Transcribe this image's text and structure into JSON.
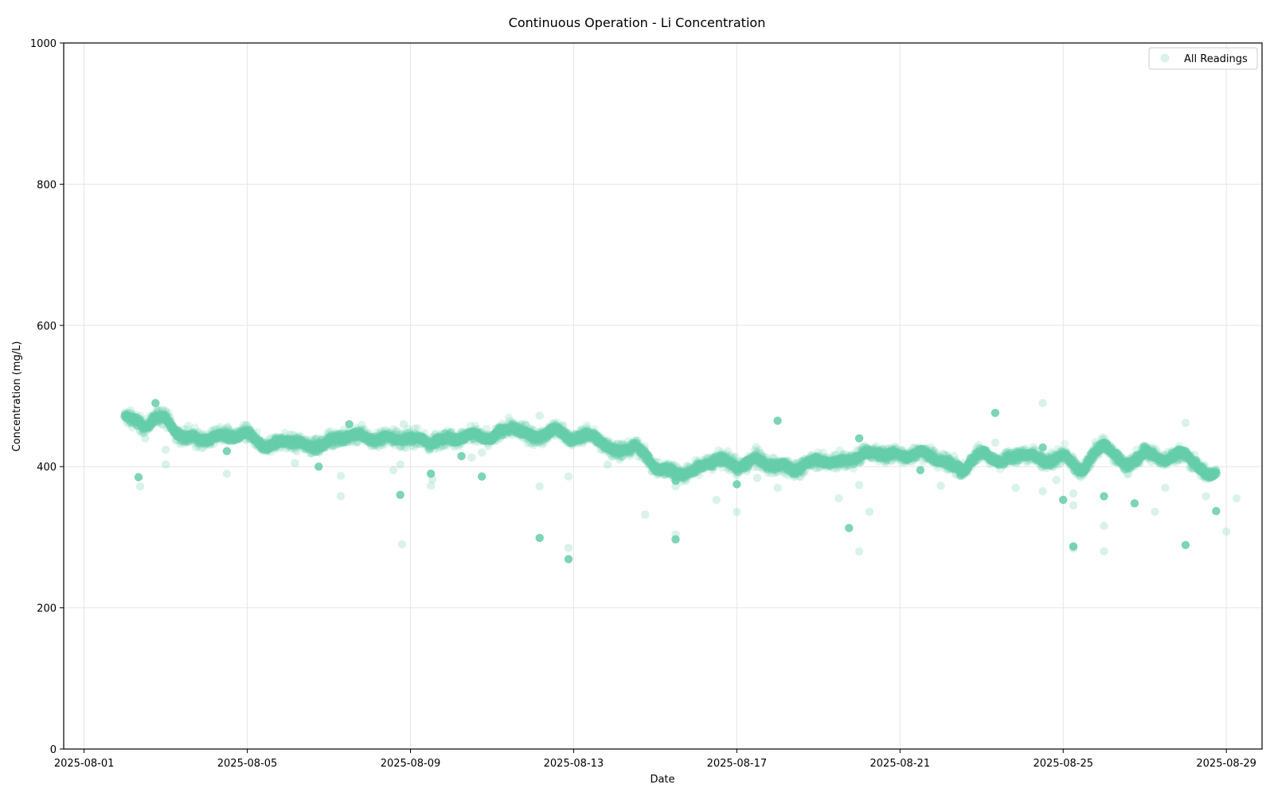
{
  "chart_data": {
    "type": "scatter",
    "title": "Continuous Operation - Li Concentration",
    "xlabel": "Date",
    "ylabel": "Concentration (mg/L)",
    "xlim": [
      "2025-08-00T12:00",
      "2025-08-29T21:00"
    ],
    "ylim": [
      0,
      1000
    ],
    "x_ticks": [
      "2025-08-01",
      "2025-08-05",
      "2025-08-09",
      "2025-08-13",
      "2025-08-17",
      "2025-08-21",
      "2025-08-25",
      "2025-08-29"
    ],
    "y_ticks": [
      0,
      200,
      400,
      600,
      800,
      1000
    ],
    "grid": true,
    "legend_position": "top-right",
    "color": "#66cdaa",
    "series": [
      {
        "name": "All Readings",
        "trend": [
          [
            "2025-08-02 00:00",
            473
          ],
          [
            "2025-08-02 06:00",
            462
          ],
          [
            "2025-08-02 12:00",
            458
          ],
          [
            "2025-08-02 18:00",
            470
          ],
          [
            "2025-08-03 00:00",
            468
          ],
          [
            "2025-08-03 06:00",
            450
          ],
          [
            "2025-08-03 12:00",
            440
          ],
          [
            "2025-08-04 00:00",
            440
          ],
          [
            "2025-08-04 12:00",
            444
          ],
          [
            "2025-08-05 00:00",
            445
          ],
          [
            "2025-08-05 12:00",
            428
          ],
          [
            "2025-08-06 00:00",
            438
          ],
          [
            "2025-08-06 12:00",
            428
          ],
          [
            "2025-08-07 00:00",
            435
          ],
          [
            "2025-08-07 12:00",
            445
          ],
          [
            "2025-08-08 00:00",
            440
          ],
          [
            "2025-08-08 12:00",
            440
          ],
          [
            "2025-08-09 00:00",
            440
          ],
          [
            "2025-08-09 12:00",
            435
          ],
          [
            "2025-08-10 00:00",
            440
          ],
          [
            "2025-08-10 12:00",
            445
          ],
          [
            "2025-08-11 00:00",
            440
          ],
          [
            "2025-08-11 12:00",
            458
          ],
          [
            "2025-08-12 00:00",
            440
          ],
          [
            "2025-08-12 12:00",
            452
          ],
          [
            "2025-08-13 00:00",
            440
          ],
          [
            "2025-08-13 12:00",
            445
          ],
          [
            "2025-08-14 00:00",
            420
          ],
          [
            "2025-08-14 12:00",
            430
          ],
          [
            "2025-08-15 00:00",
            400
          ],
          [
            "2025-08-15 12:00",
            390
          ],
          [
            "2025-08-16 00:00",
            395
          ],
          [
            "2025-08-16 12:00",
            412
          ],
          [
            "2025-08-17 00:00",
            400
          ],
          [
            "2025-08-17 12:00",
            410
          ],
          [
            "2025-08-18 00:00",
            400
          ],
          [
            "2025-08-18 12:00",
            398
          ],
          [
            "2025-08-19 00:00",
            410
          ],
          [
            "2025-08-19 12:00",
            405
          ],
          [
            "2025-08-20 00:00",
            415
          ],
          [
            "2025-08-20 12:00",
            420
          ],
          [
            "2025-08-21 00:00",
            415
          ],
          [
            "2025-08-21 12:00",
            420
          ],
          [
            "2025-08-22 00:00",
            410
          ],
          [
            "2025-08-22 12:00",
            395
          ],
          [
            "2025-08-23 00:00",
            420
          ],
          [
            "2025-08-23 12:00",
            405
          ],
          [
            "2025-08-24 00:00",
            420
          ],
          [
            "2025-08-24 12:00",
            408
          ],
          [
            "2025-08-25 00:00",
            415
          ],
          [
            "2025-08-25 12:00",
            395
          ],
          [
            "2025-08-26 00:00",
            435
          ],
          [
            "2025-08-26 12:00",
            400
          ],
          [
            "2025-08-27 00:00",
            420
          ],
          [
            "2025-08-27 12:00",
            410
          ],
          [
            "2025-08-28 00:00",
            420
          ],
          [
            "2025-08-28 06:00",
            405
          ],
          [
            "2025-08-28 12:00",
            385
          ],
          [
            "2025-08-28 18:00",
            392
          ]
        ],
        "outliers": [
          [
            "2025-08-02 08:00",
            385
          ],
          [
            "2025-08-02 09:00",
            372
          ],
          [
            "2025-08-02 12:00",
            440
          ],
          [
            "2025-08-02 18:00",
            490
          ],
          [
            "2025-08-03 00:00",
            424
          ],
          [
            "2025-08-03 00:00",
            403
          ],
          [
            "2025-08-04 12:00",
            422
          ],
          [
            "2025-08-04 12:00",
            390
          ],
          [
            "2025-08-06 04:00",
            405
          ],
          [
            "2025-08-06 18:00",
            400
          ],
          [
            "2025-08-07 07:00",
            387
          ],
          [
            "2025-08-07 07:00",
            358
          ],
          [
            "2025-08-07 12:00",
            460
          ],
          [
            "2025-08-08 14:00",
            395
          ],
          [
            "2025-08-08 18:00",
            403
          ],
          [
            "2025-08-08 18:00",
            360
          ],
          [
            "2025-08-08 19:00",
            290
          ],
          [
            "2025-08-08 20:00",
            460
          ],
          [
            "2025-08-09 12:00",
            390
          ],
          [
            "2025-08-09 13:00",
            382
          ],
          [
            "2025-08-09 12:00",
            373
          ],
          [
            "2025-08-10 06:00",
            415
          ],
          [
            "2025-08-10 12:00",
            413
          ],
          [
            "2025-08-10 18:00",
            420
          ],
          [
            "2025-08-10 18:00",
            386
          ],
          [
            "2025-08-12 04:00",
            472
          ],
          [
            "2025-08-12 04:00",
            372
          ],
          [
            "2025-08-12 04:00",
            299
          ],
          [
            "2025-08-12 21:00",
            386
          ],
          [
            "2025-08-12 21:00",
            285
          ],
          [
            "2025-08-12 21:00",
            269
          ],
          [
            "2025-08-13 20:00",
            403
          ],
          [
            "2025-08-14 18:00",
            332
          ],
          [
            "2025-08-15 12:00",
            380
          ],
          [
            "2025-08-15 12:00",
            372
          ],
          [
            "2025-08-15 12:00",
            304
          ],
          [
            "2025-08-15 12:00",
            297
          ],
          [
            "2025-08-15 18:00",
            380
          ],
          [
            "2025-08-16 12:00",
            353
          ],
          [
            "2025-08-17 00:00",
            375
          ],
          [
            "2025-08-17 00:00",
            336
          ],
          [
            "2025-08-17 12:00",
            384
          ],
          [
            "2025-08-18 00:00",
            465
          ],
          [
            "2025-08-18 00:00",
            370
          ],
          [
            "2025-08-19 12:00",
            355
          ],
          [
            "2025-08-19 18:00",
            313
          ],
          [
            "2025-08-20 00:00",
            374
          ],
          [
            "2025-08-20 00:00",
            280
          ],
          [
            "2025-08-20 00:00",
            440
          ],
          [
            "2025-08-20 00:00",
            423
          ],
          [
            "2025-08-20 06:00",
            336
          ],
          [
            "2025-08-21 12:00",
            395
          ],
          [
            "2025-08-22 00:00",
            373
          ],
          [
            "2025-08-23 08:00",
            434
          ],
          [
            "2025-08-23 08:00",
            476
          ],
          [
            "2025-08-23 20:00",
            370
          ],
          [
            "2025-08-24 12:00",
            490
          ],
          [
            "2025-08-24 12:00",
            427
          ],
          [
            "2025-08-24 12:00",
            365
          ],
          [
            "2025-08-24 20:00",
            381
          ],
          [
            "2025-08-25 00:00",
            353
          ],
          [
            "2025-08-25 06:00",
            345
          ],
          [
            "2025-08-25 06:00",
            362
          ],
          [
            "2025-08-25 06:00",
            287
          ],
          [
            "2025-08-25 06:00",
            284
          ],
          [
            "2025-08-25 12:00",
            388
          ],
          [
            "2025-08-26 00:00",
            358
          ],
          [
            "2025-08-26 00:00",
            316
          ],
          [
            "2025-08-26 00:00",
            280
          ],
          [
            "2025-08-26 18:00",
            348
          ],
          [
            "2025-08-27 06:00",
            336
          ],
          [
            "2025-08-27 12:00",
            370
          ],
          [
            "2025-08-28 00:00",
            289
          ],
          [
            "2025-08-28 00:00",
            462
          ],
          [
            "2025-08-28 12:00",
            358
          ],
          [
            "2025-08-28 18:00",
            337
          ],
          [
            "2025-08-29 00:00",
            308
          ],
          [
            "2025-08-29 06:00",
            355
          ]
        ]
      }
    ]
  }
}
